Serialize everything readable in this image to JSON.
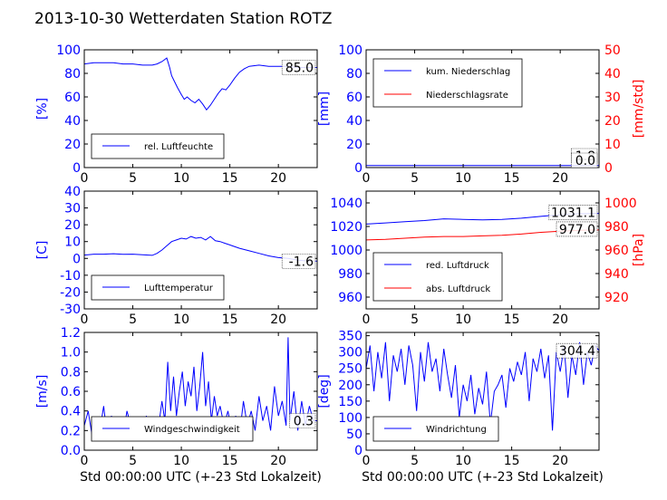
{
  "figure": {
    "title": "2013-10-30 Wetterdaten Station ROTZ"
  },
  "chart_data": [
    {
      "id": "humidity",
      "type": "line",
      "xlim": [
        0,
        24
      ],
      "xticks": [
        0,
        5,
        10,
        15,
        20
      ],
      "ylim": [
        0,
        100
      ],
      "yticks": [
        0,
        20,
        40,
        60,
        80,
        100
      ],
      "ylabel": "[%]",
      "xlabel": "",
      "legend_position": "bottom-left",
      "last_value_label": "85.0",
      "series": [
        {
          "name": "rel. Luftfeuchte",
          "color": "#0000ff",
          "x": [
            0,
            1,
            2,
            3,
            4,
            5,
            6,
            7,
            7.5,
            8,
            8.5,
            8.8,
            9,
            9.3,
            9.6,
            10,
            10.3,
            10.6,
            11,
            11.4,
            11.8,
            12.2,
            12.6,
            13,
            13.4,
            13.8,
            14.2,
            14.6,
            15,
            15.5,
            16,
            16.5,
            17,
            18,
            19,
            20,
            21,
            22,
            23,
            24
          ],
          "y": [
            88,
            89,
            89,
            89,
            88,
            88,
            87,
            87,
            88,
            90,
            93,
            85,
            78,
            73,
            68,
            62,
            58,
            60,
            57,
            55,
            58,
            54,
            49,
            53,
            58,
            63,
            67,
            66,
            70,
            76,
            81,
            84,
            86,
            87,
            86,
            86,
            86,
            85,
            85,
            85
          ]
        }
      ]
    },
    {
      "id": "precipitation",
      "type": "line",
      "xlim": [
        0,
        24
      ],
      "xticks": [
        0,
        5,
        10,
        15,
        20
      ],
      "ylim": [
        0,
        100
      ],
      "yticks": [
        0,
        20,
        40,
        60,
        80,
        100
      ],
      "ylabel": "[mm]",
      "y2lim": [
        0,
        50
      ],
      "y2ticks": [
        0,
        10,
        20,
        30,
        40,
        50
      ],
      "y2label": "[mm/std]",
      "legend_position": "top-left",
      "last_value_labels": [
        "1.8",
        "0.0"
      ],
      "series": [
        {
          "name": "kum. Niederschlag",
          "color": "#0000ff",
          "axis": "left",
          "x": [
            0,
            24
          ],
          "y": [
            1.8,
            1.8
          ]
        },
        {
          "name": "Niederschlagsrate",
          "color": "#ff0000",
          "axis": "right",
          "x": [
            0,
            24
          ],
          "y": [
            0,
            0
          ]
        }
      ]
    },
    {
      "id": "temperature",
      "type": "line",
      "xlim": [
        0,
        24
      ],
      "xticks": [
        0,
        5,
        10,
        15,
        20
      ],
      "ylim": [
        -30,
        40
      ],
      "yticks": [
        -30,
        -20,
        -10,
        0,
        10,
        20,
        30,
        40
      ],
      "ylabel": "[C]",
      "legend_position": "bottom-left",
      "last_value_label": "-1.6",
      "series": [
        {
          "name": "Lufttemperatur",
          "color": "#0000ff",
          "x": [
            0,
            1,
            2,
            3,
            4,
            5,
            6,
            7,
            7.5,
            8,
            8.5,
            9,
            9.5,
            10,
            10.5,
            11,
            11.5,
            12,
            12.5,
            13,
            13.5,
            14,
            14.5,
            15,
            16,
            17,
            18,
            19,
            20,
            21,
            22,
            23,
            24
          ],
          "y": [
            2,
            2.5,
            2.5,
            2.8,
            2.4,
            2.5,
            2.2,
            1.8,
            3,
            5,
            7.5,
            10,
            11,
            12,
            11.5,
            13,
            12,
            12.5,
            11,
            13,
            10.5,
            10,
            9,
            8,
            6,
            4.5,
            3,
            1.5,
            0.5,
            0,
            -1,
            -1.5,
            -1.6
          ]
        }
      ]
    },
    {
      "id": "pressure",
      "type": "line",
      "xlim": [
        0,
        24
      ],
      "xticks": [
        0,
        5,
        10,
        15,
        20
      ],
      "ylim": [
        950,
        1050
      ],
      "yticks": [
        960,
        980,
        1000,
        1020,
        1040
      ],
      "ylabel": "",
      "y2lim": [
        910,
        1010
      ],
      "y2ticks": [
        920,
        940,
        960,
        980,
        1000
      ],
      "y2label": "[hPa]",
      "legend_position": "bottom-left",
      "last_value_labels": [
        "1031.1",
        "977.0"
      ],
      "series": [
        {
          "name": "red. Luftdruck",
          "color": "#0000ff",
          "axis": "left",
          "x": [
            0,
            2,
            4,
            6,
            8,
            10,
            12,
            14,
            16,
            18,
            20,
            22,
            24
          ],
          "y": [
            1022,
            1023,
            1024,
            1025,
            1026.5,
            1026,
            1025.5,
            1026,
            1027,
            1028.5,
            1030,
            1030.8,
            1031.1
          ]
        },
        {
          "name": "abs. Luftdruck",
          "color": "#ff0000",
          "axis": "right",
          "x": [
            0,
            2,
            4,
            6,
            8,
            10,
            12,
            14,
            16,
            18,
            20,
            22,
            24
          ],
          "y": [
            968.5,
            969,
            970,
            971,
            971.5,
            971.5,
            972,
            972.5,
            973.5,
            975,
            976,
            976.7,
            977
          ]
        }
      ]
    },
    {
      "id": "windspeed",
      "type": "line",
      "xlim": [
        0,
        24
      ],
      "xticks": [
        0,
        5,
        10,
        15,
        20
      ],
      "ylim": [
        0,
        1.2
      ],
      "yticks": [
        0.0,
        0.2,
        0.4,
        0.6,
        0.8,
        1.0,
        1.2
      ],
      "ytick_labels": [
        "0.0",
        "0.2",
        "0.4",
        "0.6",
        "0.8",
        "1.0",
        "1.2"
      ],
      "ylabel": "[m/s]",
      "xlabel": "Std 00:00:00 UTC (+-23 Std Lokalzeit)",
      "legend_position": "bottom-left",
      "last_value_label": "0.3",
      "series": [
        {
          "name": "Windgeschwindigkeit",
          "color": "#0000ff",
          "x": [
            0,
            0.4,
            0.8,
            1.2,
            1.6,
            2,
            2.4,
            2.8,
            3.2,
            3.6,
            4,
            4.4,
            4.8,
            5.2,
            5.6,
            6,
            6.4,
            6.8,
            7.2,
            7.6,
            8,
            8.3,
            8.6,
            8.9,
            9.2,
            9.5,
            9.8,
            10.1,
            10.4,
            10.7,
            11,
            11.3,
            11.6,
            11.9,
            12.2,
            12.5,
            12.8,
            13.1,
            13.4,
            13.7,
            14,
            14.4,
            14.8,
            15.2,
            15.6,
            16,
            16.4,
            16.8,
            17.2,
            17.6,
            18,
            18.4,
            18.8,
            19.2,
            19.6,
            20,
            20.4,
            20.8,
            21,
            21.2,
            21.6,
            22,
            22.4,
            22.8,
            23.2,
            23.6,
            24
          ],
          "y": [
            0.25,
            0.4,
            0.15,
            0.3,
            0.2,
            0.45,
            0.1,
            0.35,
            0.2,
            0.3,
            0.15,
            0.4,
            0.25,
            0.1,
            0.3,
            0.2,
            0.35,
            0.15,
            0.3,
            0.2,
            0.5,
            0.3,
            0.9,
            0.4,
            0.75,
            0.35,
            0.6,
            0.8,
            0.45,
            0.7,
            0.55,
            0.85,
            0.4,
            0.65,
            1.0,
            0.45,
            0.7,
            0.3,
            0.55,
            0.35,
            0.45,
            0.25,
            0.4,
            0.2,
            0.35,
            0.15,
            0.5,
            0.25,
            0.4,
            0.2,
            0.55,
            0.3,
            0.45,
            0.2,
            0.65,
            0.35,
            0.5,
            0.25,
            1.15,
            0.3,
            0.6,
            0.2,
            0.5,
            0.25,
            0.45,
            0.3,
            0.3
          ]
        }
      ]
    },
    {
      "id": "winddirection",
      "type": "line",
      "xlim": [
        0,
        24
      ],
      "xticks": [
        0,
        5,
        10,
        15,
        20
      ],
      "ylim": [
        0,
        360
      ],
      "yticks": [
        0,
        50,
        100,
        150,
        200,
        250,
        300,
        350
      ],
      "ylabel": "[deg]",
      "xlabel": "Std 00:00:00 UTC (+-23 Std Lokalzeit)",
      "legend_position": "bottom-left",
      "last_value_label": "304.4",
      "series": [
        {
          "name": "Windrichtung",
          "color": "#0000ff",
          "x": [
            0,
            0.4,
            0.8,
            1.2,
            1.6,
            2,
            2.4,
            2.8,
            3.2,
            3.6,
            4,
            4.4,
            4.8,
            5.2,
            5.6,
            6,
            6.4,
            6.8,
            7.2,
            7.6,
            8,
            8.4,
            8.8,
            9.2,
            9.6,
            10,
            10.4,
            10.8,
            11.2,
            11.6,
            12,
            12.4,
            12.8,
            13.2,
            13.6,
            14,
            14.4,
            14.8,
            15.2,
            15.6,
            16,
            16.4,
            16.8,
            17.2,
            17.6,
            18,
            18.4,
            18.8,
            19.2,
            19.6,
            20,
            20.4,
            20.8,
            21.2,
            21.6,
            22,
            22.4,
            22.8,
            23.2,
            23.6,
            24
          ],
          "y": [
            250,
            320,
            180,
            300,
            220,
            330,
            150,
            290,
            240,
            310,
            200,
            320,
            260,
            120,
            300,
            210,
            330,
            240,
            280,
            180,
            310,
            230,
            160,
            260,
            100,
            200,
            150,
            230,
            110,
            190,
            140,
            240,
            80,
            180,
            200,
            230,
            130,
            250,
            210,
            270,
            230,
            300,
            150,
            280,
            240,
            310,
            220,
            290,
            60,
            300,
            240,
            320,
            160,
            290,
            230,
            330,
            200,
            300,
            260,
            320,
            304
          ]
        }
      ]
    }
  ]
}
